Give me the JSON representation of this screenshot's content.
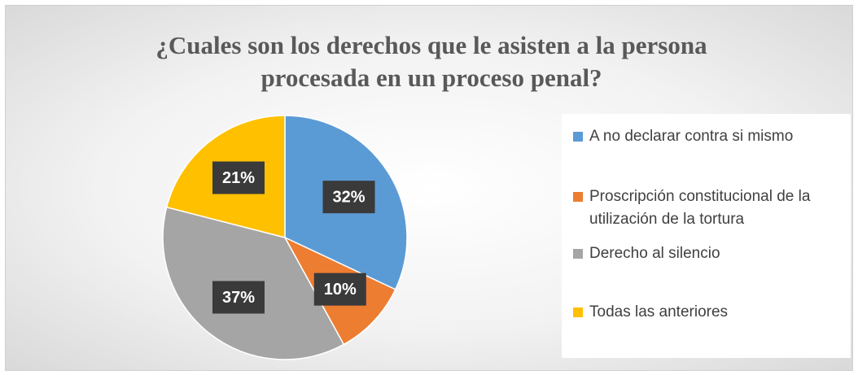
{
  "chart_data": {
    "type": "pie",
    "title": "¿Cuales son los derechos que le asisten a la persona procesada en un proceso penal?",
    "categories": [
      "A no declarar contra si mismo",
      "Proscripción constitucional de la utilización de la tortura",
      "Derecho al silencio",
      "Todas las anteriores"
    ],
    "values": [
      32,
      10,
      37,
      21
    ],
    "value_labels": [
      "32%",
      "10%",
      "37%",
      "21%"
    ],
    "colors": [
      "#5b9bd5",
      "#ed7d31",
      "#a5a5a5",
      "#ffc000"
    ],
    "legend": "right"
  }
}
